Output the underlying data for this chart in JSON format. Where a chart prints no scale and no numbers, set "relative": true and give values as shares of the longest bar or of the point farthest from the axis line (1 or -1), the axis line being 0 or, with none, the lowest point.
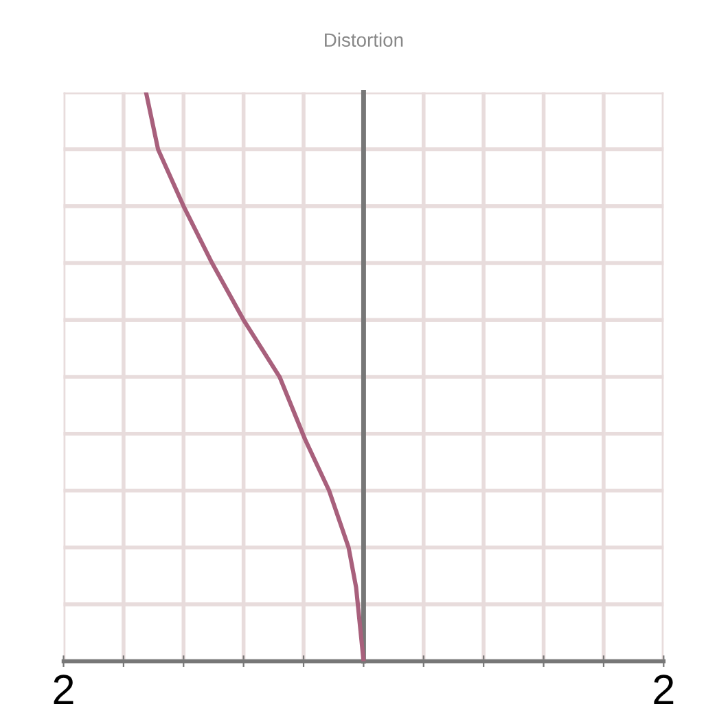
{
  "chart_data": {
    "type": "line",
    "title": "Distortion",
    "relative": true,
    "x": [
      -1.45,
      -1.37,
      -1.2,
      -1.01,
      -0.8,
      -0.56,
      -0.39,
      -0.23,
      -0.1,
      -0.05,
      0
    ],
    "series": [
      {
        "color": "#a8607c",
        "values": [
          1,
          0.9,
          0.8,
          0.7,
          0.6,
          0.5,
          0.39,
          0.3,
          0.2,
          0.13,
          0
        ]
      }
    ],
    "xlim": [
      -2,
      2
    ],
    "xticks": [
      {
        "value": -2,
        "label": "2"
      },
      {
        "value": -1.6,
        "label": null
      },
      {
        "value": -1.2,
        "label": null
      },
      {
        "value": -0.8,
        "label": null
      },
      {
        "value": -0.4,
        "label": null
      },
      {
        "value": 0,
        "label": null
      },
      {
        "value": 0.4,
        "label": null
      },
      {
        "value": 0.8,
        "label": null
      },
      {
        "value": 1.2,
        "label": null
      },
      {
        "value": 1.6,
        "label": null
      },
      {
        "value": 2,
        "label": "2"
      }
    ],
    "grid": true,
    "marker": "none",
    "line_style": "solid"
  }
}
